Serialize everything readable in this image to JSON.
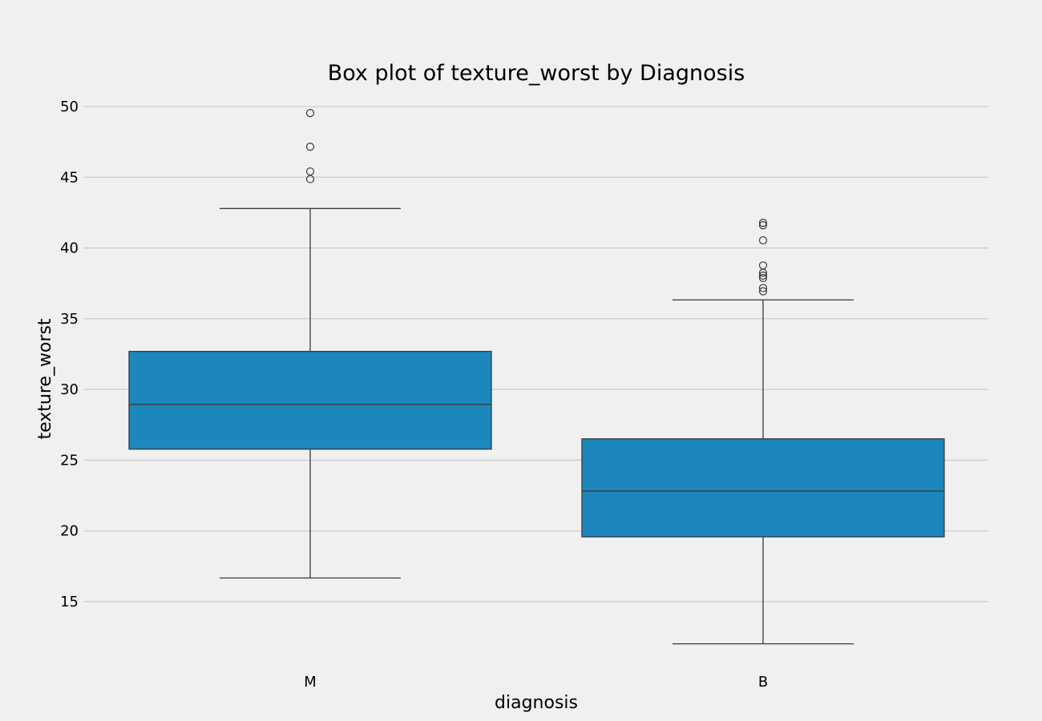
{
  "chart_data": {
    "type": "box",
    "title": "Box plot of texture_worst by Diagnosis",
    "xlabel": "diagnosis",
    "ylabel": "texture_worst",
    "ylim": [
      11.5,
      51.0
    ],
    "yticks": [
      15,
      20,
      25,
      30,
      35,
      40,
      45,
      50
    ],
    "grid": "horizontal",
    "box_color": "#1b87bc",
    "categories": [
      "M",
      "B"
    ],
    "boxes": [
      {
        "category": "M",
        "whisker_low": 16.67,
        "q1": 25.78,
        "median": 28.95,
        "q3": 32.69,
        "whisker_high": 42.79,
        "outliers": [
          44.87,
          45.41,
          47.16,
          49.54
        ]
      },
      {
        "category": "B",
        "whisker_low": 12.02,
        "q1": 19.58,
        "median": 22.82,
        "q3": 26.51,
        "whisker_high": 36.33,
        "outliers": [
          36.94,
          37.17,
          37.88,
          38.05,
          38.25,
          38.77,
          40.54,
          41.61,
          41.78
        ]
      }
    ]
  }
}
